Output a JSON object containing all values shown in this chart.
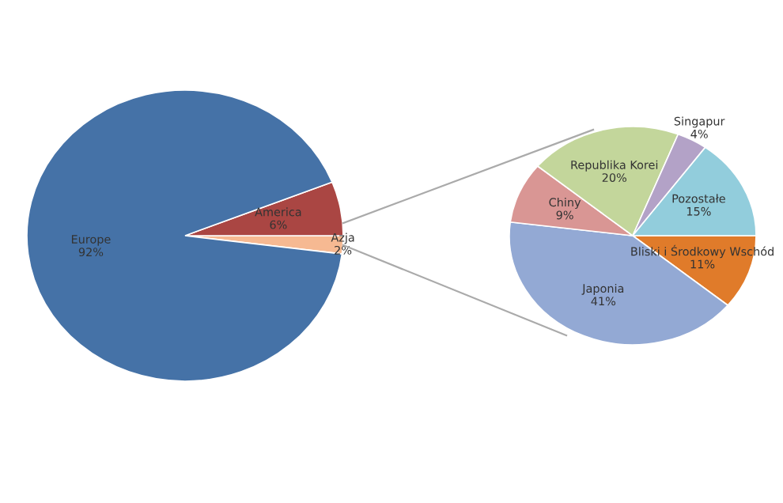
{
  "chart_data": [
    {
      "type": "pie",
      "categories": [
        "Azja",
        "America",
        "Europe"
      ],
      "values": [
        2,
        6,
        92
      ],
      "value_labels": [
        "2%",
        "6%",
        "92%"
      ],
      "colors": [
        "#f6b992",
        "#aa4643",
        "#4572a7"
      ]
    },
    {
      "type": "pie",
      "categories": [
        "Bliski i Środkowy Wschód",
        "Japonia",
        "Chiny",
        "Republika Korei",
        "Singapur",
        "Pozostałe"
      ],
      "values": [
        11,
        41,
        9,
        20,
        4,
        15
      ],
      "value_labels": [
        "11%",
        "41%",
        "9%",
        "20%",
        "4%",
        "15%"
      ],
      "colors": [
        "#e07b2a",
        "#93a9d4",
        "#d99694",
        "#c3d69b",
        "#b3a2c7",
        "#92cddc"
      ]
    }
  ]
}
